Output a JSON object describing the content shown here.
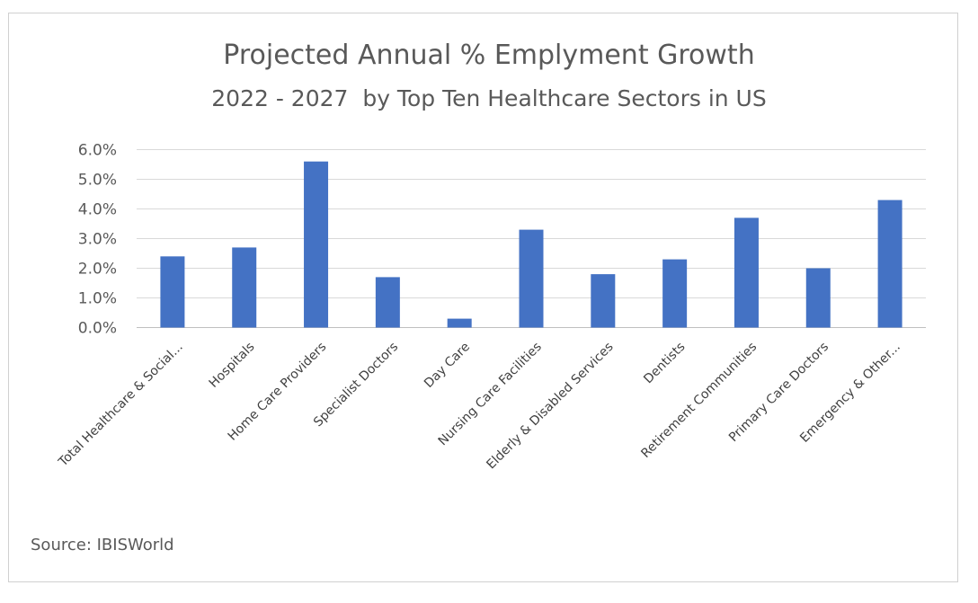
{
  "chart_data": {
    "type": "bar",
    "title": "Projected Annual % Emplyment Growth",
    "subtitle": "2022 - 2027  by Top Ten Healthcare Sectors in US",
    "categories": [
      "Total Healthcare & Social...",
      "Hospitals",
      "Home Care Providers",
      "Specialist Doctors",
      "Day Care",
      "Nursing Care Facilities",
      "Elderly & Disabled Services",
      "Dentists",
      "Retirement Communities",
      "Primary Care Doctors",
      "Emergency & Other..."
    ],
    "values": [
      2.4,
      2.7,
      5.6,
      1.7,
      0.3,
      3.3,
      1.8,
      2.3,
      3.7,
      2.0,
      4.3
    ],
    "yticks": [
      "0.0%",
      "1.0%",
      "2.0%",
      "3.0%",
      "4.0%",
      "5.0%",
      "6.0%"
    ],
    "ylim": [
      0,
      6
    ],
    "grid": true,
    "bar_color": "#4472c4",
    "source": "Source: IBISWorld"
  }
}
